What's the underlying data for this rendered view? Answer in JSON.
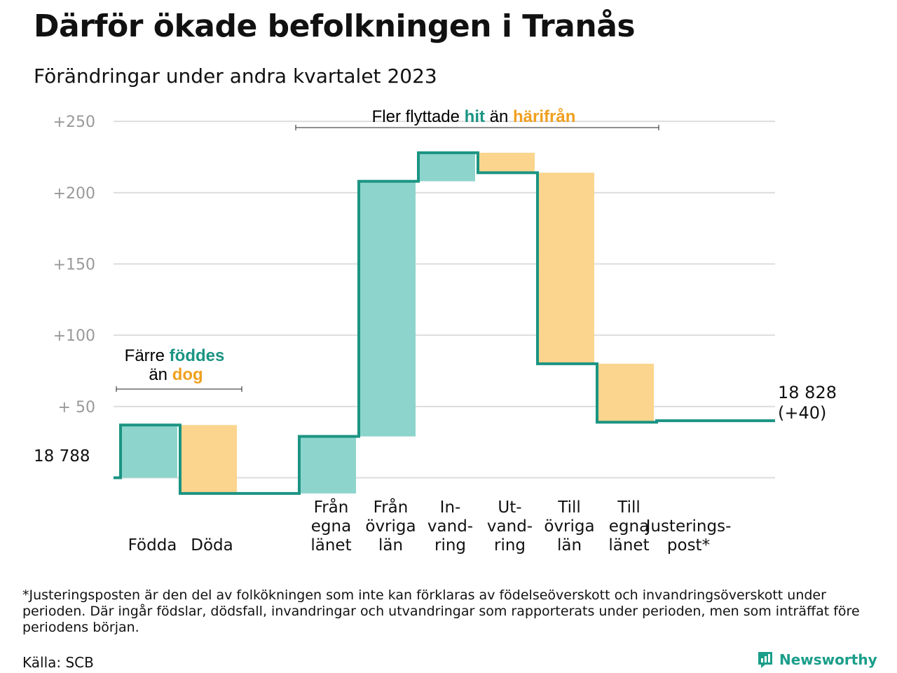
{
  "title": "Därför ökade befolkningen i Tranås",
  "subtitle": "Förändringar under andra kvartalet 2023",
  "footnote": "*Justeringsposten är den del av folkökningen som inte kan förklaras av födelseöverskott och invandringsöverskott under perioden. Där ingår födslar, dödsfall, invandringar och utvandringar som rapporterats under perioden, men som inträffat före periodens början.",
  "source": "Källa: SCB",
  "brand": "Newsworthy",
  "colors": {
    "increase": "#8dd4cc",
    "decrease": "#fbd48d",
    "line": "#1b9483",
    "grid": "#dddddd",
    "tick": "#999999"
  },
  "annotations": {
    "births": {
      "line1_prefix": "Färre ",
      "line1_highlight": "föddes",
      "line2_prefix": "än ",
      "line2_highlight": "dog"
    },
    "migration": {
      "prefix": "Fler flyttade ",
      "highlight_in": "hit",
      "middle": " än ",
      "highlight_out": "härifrån"
    }
  },
  "chart_data": {
    "type": "waterfall",
    "start_label": "18  788",
    "end_label": [
      "18 828",
      "(+40)"
    ],
    "yticks": [
      "+250",
      "+200",
      "+150",
      "+100",
      "+  50"
    ],
    "ylim": [
      -15,
      255
    ],
    "steps": [
      {
        "label": [
          "Födda"
        ],
        "delta": 37,
        "kind": "increase"
      },
      {
        "label": [
          "Döda"
        ],
        "delta": -48,
        "kind": "decrease"
      },
      {
        "label": [],
        "delta": 0,
        "kind": "none"
      },
      {
        "label": [
          "Från",
          "egna",
          "länet"
        ],
        "delta": 40,
        "kind": "increase"
      },
      {
        "label": [
          "Från",
          "övriga",
          "län"
        ],
        "delta": 179,
        "kind": "increase"
      },
      {
        "label": [
          "In-",
          "vand-",
          "ring"
        ],
        "delta": 20,
        "kind": "increase"
      },
      {
        "label": [
          "Ut-",
          "vand-",
          "ring"
        ],
        "delta": -14,
        "kind": "decrease"
      },
      {
        "label": [
          "Till",
          "övriga",
          "län"
        ],
        "delta": -134,
        "kind": "decrease"
      },
      {
        "label": [
          "Till",
          "egna",
          "länet"
        ],
        "delta": -41,
        "kind": "decrease"
      },
      {
        "label": [
          "Justerings-",
          "post*"
        ],
        "delta": 1,
        "kind": "adjustment"
      }
    ]
  }
}
